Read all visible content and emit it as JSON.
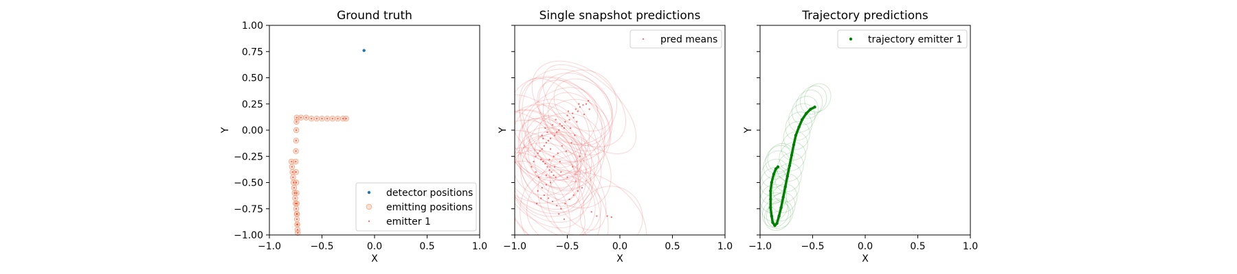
{
  "chart_data": [
    {
      "type": "scatter",
      "title": "Ground truth",
      "xlabel": "X",
      "ylabel": "Y",
      "xlim": [
        -1.0,
        1.0
      ],
      "ylim": [
        -1.0,
        1.0
      ],
      "xticks": [
        "−1.0",
        "−0.5",
        "0.0",
        "0.5",
        "1.0"
      ],
      "yticks": [
        "−1.00",
        "−0.75",
        "−0.50",
        "−0.25",
        "0.00",
        "0.25",
        "0.50",
        "0.75",
        "1.00"
      ],
      "legend_position": "lower right",
      "series": [
        {
          "name": "detector positions",
          "color": "#1f77b4",
          "marker": "dot",
          "points": [
            [
              -0.1,
              0.76
            ]
          ]
        },
        {
          "name": "emitting positions",
          "color": "#f4a582",
          "marker": "open-circle",
          "points": [
            [
              -0.79,
              -0.3
            ],
            [
              -0.785,
              -0.35
            ],
            [
              -0.78,
              -0.4
            ],
            [
              -0.775,
              -0.45
            ],
            [
              -0.77,
              -0.5
            ],
            [
              -0.765,
              -0.55
            ],
            [
              -0.76,
              -0.6
            ],
            [
              -0.755,
              -0.65
            ],
            [
              -0.75,
              -0.7
            ],
            [
              -0.745,
              -0.75
            ],
            [
              -0.74,
              -0.8
            ],
            [
              -0.738,
              -0.85
            ],
            [
              -0.735,
              -0.9
            ],
            [
              -0.733,
              -0.95
            ],
            [
              -0.73,
              -0.98
            ],
            [
              -0.735,
              -0.9
            ],
            [
              -0.737,
              -0.8
            ],
            [
              -0.74,
              -0.7
            ],
            [
              -0.742,
              -0.6
            ],
            [
              -0.745,
              -0.5
            ],
            [
              -0.747,
              -0.4
            ],
            [
              -0.75,
              -0.3
            ],
            [
              -0.748,
              -0.2
            ],
            [
              -0.746,
              -0.1
            ],
            [
              -0.744,
              0.0
            ],
            [
              -0.742,
              0.08
            ],
            [
              -0.74,
              0.12
            ],
            [
              -0.7,
              0.12
            ],
            [
              -0.65,
              0.12
            ],
            [
              -0.6,
              0.11
            ],
            [
              -0.55,
              0.11
            ],
            [
              -0.5,
              0.11
            ],
            [
              -0.45,
              0.11
            ],
            [
              -0.4,
              0.11
            ],
            [
              -0.35,
              0.11
            ],
            [
              -0.3,
              0.11
            ],
            [
              -0.27,
              0.11
            ]
          ]
        },
        {
          "name": "emitter 1",
          "color": "#e41a1c",
          "marker": "small-dot",
          "points": [
            [
              -0.79,
              -0.3
            ],
            [
              -0.785,
              -0.35
            ],
            [
              -0.78,
              -0.4
            ],
            [
              -0.775,
              -0.45
            ],
            [
              -0.77,
              -0.5
            ],
            [
              -0.765,
              -0.55
            ],
            [
              -0.76,
              -0.6
            ],
            [
              -0.755,
              -0.65
            ],
            [
              -0.75,
              -0.7
            ],
            [
              -0.745,
              -0.75
            ],
            [
              -0.74,
              -0.8
            ],
            [
              -0.738,
              -0.85
            ],
            [
              -0.735,
              -0.9
            ],
            [
              -0.733,
              -0.95
            ],
            [
              -0.73,
              -0.98
            ],
            [
              -0.735,
              -0.9
            ],
            [
              -0.737,
              -0.8
            ],
            [
              -0.74,
              -0.7
            ],
            [
              -0.742,
              -0.6
            ],
            [
              -0.745,
              -0.5
            ],
            [
              -0.747,
              -0.4
            ],
            [
              -0.75,
              -0.3
            ],
            [
              -0.748,
              -0.2
            ],
            [
              -0.746,
              -0.1
            ],
            [
              -0.744,
              0.0
            ],
            [
              -0.742,
              0.08
            ],
            [
              -0.74,
              0.12
            ],
            [
              -0.7,
              0.12
            ],
            [
              -0.65,
              0.12
            ],
            [
              -0.6,
              0.11
            ],
            [
              -0.55,
              0.11
            ],
            [
              -0.5,
              0.11
            ],
            [
              -0.45,
              0.11
            ],
            [
              -0.4,
              0.11
            ],
            [
              -0.35,
              0.11
            ],
            [
              -0.3,
              0.11
            ],
            [
              -0.27,
              0.11
            ]
          ]
        }
      ]
    },
    {
      "type": "scatter",
      "title": "Single snapshot predictions",
      "xlabel": "X",
      "ylabel": "Y",
      "xlim": [
        -1.0,
        1.0
      ],
      "ylim": [
        -1.0,
        1.0
      ],
      "xticks": [
        "−1.0",
        "−0.5",
        "0.0",
        "0.5",
        "1.0"
      ],
      "yticks_labeled": false,
      "legend_position": "top right",
      "series": [
        {
          "name": "pred means",
          "color": "#e41a1c",
          "marker": "small-dot",
          "points": [
            [
              -0.35,
              0.24
            ],
            [
              -0.32,
              0.25
            ],
            [
              -0.38,
              0.22
            ],
            [
              -0.4,
              0.18
            ],
            [
              -0.42,
              0.2
            ],
            [
              -0.45,
              0.16
            ],
            [
              -0.44,
              0.12
            ],
            [
              -0.48,
              0.1
            ],
            [
              -0.5,
              0.14
            ],
            [
              -0.52,
              0.08
            ],
            [
              -0.55,
              0.04
            ],
            [
              -0.53,
              0.02
            ],
            [
              -0.58,
              0.0
            ],
            [
              -0.6,
              -0.02
            ],
            [
              -0.62,
              -0.05
            ],
            [
              -0.64,
              0.05
            ],
            [
              -0.66,
              -0.08
            ],
            [
              -0.68,
              -0.1
            ],
            [
              -0.7,
              -0.12
            ],
            [
              -0.72,
              -0.15
            ],
            [
              -0.74,
              -0.18
            ],
            [
              -0.76,
              -0.2
            ],
            [
              -0.78,
              -0.22
            ],
            [
              -0.8,
              -0.25
            ],
            [
              -0.75,
              -0.28
            ],
            [
              -0.73,
              -0.3
            ],
            [
              -0.71,
              -0.32
            ],
            [
              -0.69,
              -0.35
            ],
            [
              -0.67,
              -0.38
            ],
            [
              -0.65,
              -0.4
            ],
            [
              -0.63,
              -0.43
            ],
            [
              -0.61,
              -0.45
            ],
            [
              -0.66,
              -0.5
            ],
            [
              -0.7,
              -0.52
            ],
            [
              -0.74,
              -0.55
            ],
            [
              -0.78,
              -0.58
            ],
            [
              -0.72,
              -0.62
            ],
            [
              -0.68,
              -0.65
            ],
            [
              -0.64,
              -0.68
            ],
            [
              -0.6,
              -0.72
            ],
            [
              -0.56,
              -0.75
            ],
            [
              -0.52,
              -0.7
            ],
            [
              -0.48,
              -0.66
            ],
            [
              -0.44,
              -0.62
            ],
            [
              -0.4,
              -0.58
            ],
            [
              -0.36,
              -0.55
            ],
            [
              -0.82,
              -0.3
            ],
            [
              -0.84,
              -0.35
            ],
            [
              -0.8,
              -0.4
            ],
            [
              -0.77,
              -0.45
            ],
            [
              -0.73,
              -0.08
            ],
            [
              -0.69,
              -0.02
            ],
            [
              -0.57,
              0.06
            ],
            [
              -0.47,
              0.02
            ],
            [
              -0.43,
              -0.05
            ],
            [
              -0.55,
              -0.15
            ],
            [
              -0.59,
              -0.22
            ],
            [
              -0.63,
              -0.25
            ],
            [
              -0.67,
              -0.28
            ],
            [
              -0.71,
              0.02
            ],
            [
              -0.61,
              0.1
            ],
            [
              -0.49,
              0.18
            ],
            [
              -0.39,
              0.25
            ],
            [
              -0.3,
              0.28
            ],
            [
              -0.29,
              0.2
            ],
            [
              -0.34,
              0.15
            ],
            [
              -0.41,
              0.08
            ],
            [
              -0.46,
              -0.12
            ],
            [
              -0.51,
              -0.2
            ],
            [
              -0.57,
              -0.3
            ],
            [
              -0.62,
              -0.35
            ],
            [
              -0.75,
              -0.65
            ],
            [
              -0.79,
              -0.7
            ],
            [
              -0.58,
              -0.8
            ],
            [
              -0.53,
              -0.85
            ],
            [
              -0.27,
              -0.78
            ],
            [
              -0.22,
              -0.82
            ],
            [
              -0.12,
              -0.82
            ],
            [
              -0.08,
              -0.83
            ],
            [
              -0.7,
              -0.43
            ],
            [
              -0.66,
              -0.18
            ],
            [
              -0.74,
              -0.05
            ],
            [
              -0.56,
              -0.4
            ],
            [
              -0.5,
              -0.45
            ],
            [
              -0.45,
              -0.35
            ],
            [
              -0.38,
              -0.25
            ]
          ]
        }
      ]
    },
    {
      "type": "line",
      "title": "Trajectory predictions",
      "xlabel": "X",
      "ylabel": "Y",
      "xlim": [
        -1.0,
        1.0
      ],
      "ylim": [
        -1.0,
        1.0
      ],
      "xticks": [
        "−1.0",
        "−0.5",
        "0.0",
        "0.5",
        "1.0"
      ],
      "yticks_labeled": false,
      "legend_position": "top right",
      "series": [
        {
          "name": "trajectory emitter 1",
          "color": "#008000",
          "marker": "dot",
          "points": [
            [
              -0.83,
              -0.35
            ],
            [
              -0.85,
              -0.37
            ],
            [
              -0.87,
              -0.42
            ],
            [
              -0.89,
              -0.5
            ],
            [
              -0.9,
              -0.58
            ],
            [
              -0.9,
              -0.66
            ],
            [
              -0.9,
              -0.74
            ],
            [
              -0.89,
              -0.82
            ],
            [
              -0.88,
              -0.88
            ],
            [
              -0.86,
              -0.91
            ],
            [
              -0.84,
              -0.89
            ],
            [
              -0.82,
              -0.82
            ],
            [
              -0.8,
              -0.74
            ],
            [
              -0.78,
              -0.64
            ],
            [
              -0.76,
              -0.54
            ],
            [
              -0.74,
              -0.44
            ],
            [
              -0.72,
              -0.34
            ],
            [
              -0.7,
              -0.24
            ],
            [
              -0.68,
              -0.14
            ],
            [
              -0.66,
              -0.05
            ],
            [
              -0.63,
              0.03
            ],
            [
              -0.6,
              0.1
            ],
            [
              -0.56,
              0.16
            ],
            [
              -0.52,
              0.2
            ],
            [
              -0.48,
              0.22
            ]
          ]
        }
      ]
    }
  ]
}
